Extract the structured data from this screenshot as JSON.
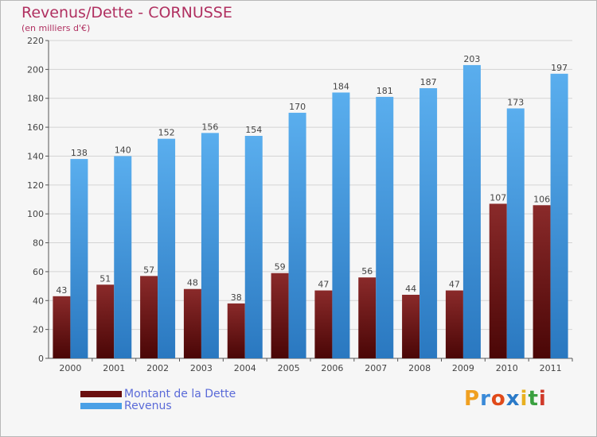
{
  "header": {
    "title": "Revenus/Dette - CORNUSSE",
    "subtitle": "(en milliers d'€)"
  },
  "chart_data": {
    "type": "bar",
    "categories": [
      "2000",
      "2001",
      "2002",
      "2003",
      "2004",
      "2005",
      "2006",
      "2007",
      "2008",
      "2009",
      "2010",
      "2011"
    ],
    "series": [
      {
        "name": "Montant de la Dette",
        "values": [
          43,
          51,
          57,
          48,
          38,
          59,
          47,
          56,
          44,
          47,
          107,
          106
        ],
        "color": "#7a1818"
      },
      {
        "name": "Revenus",
        "values": [
          138,
          140,
          152,
          156,
          154,
          170,
          184,
          181,
          187,
          203,
          173,
          197
        ],
        "color": "#4aa0e6"
      }
    ],
    "ylim": [
      0,
      220
    ],
    "yticks": [
      0,
      20,
      40,
      60,
      80,
      100,
      120,
      140,
      160,
      180,
      200,
      220
    ],
    "grid": true,
    "legend": "bottom-left",
    "data_labels": true
  },
  "logo": {
    "letters": [
      "P",
      "r",
      "o",
      "x",
      "i",
      "t",
      "i"
    ],
    "colors": [
      "#f0a020",
      "#3a8ad8",
      "#e04a1a",
      "#2a7ac8",
      "#e8b020",
      "#3aa040",
      "#d03a2a"
    ]
  }
}
